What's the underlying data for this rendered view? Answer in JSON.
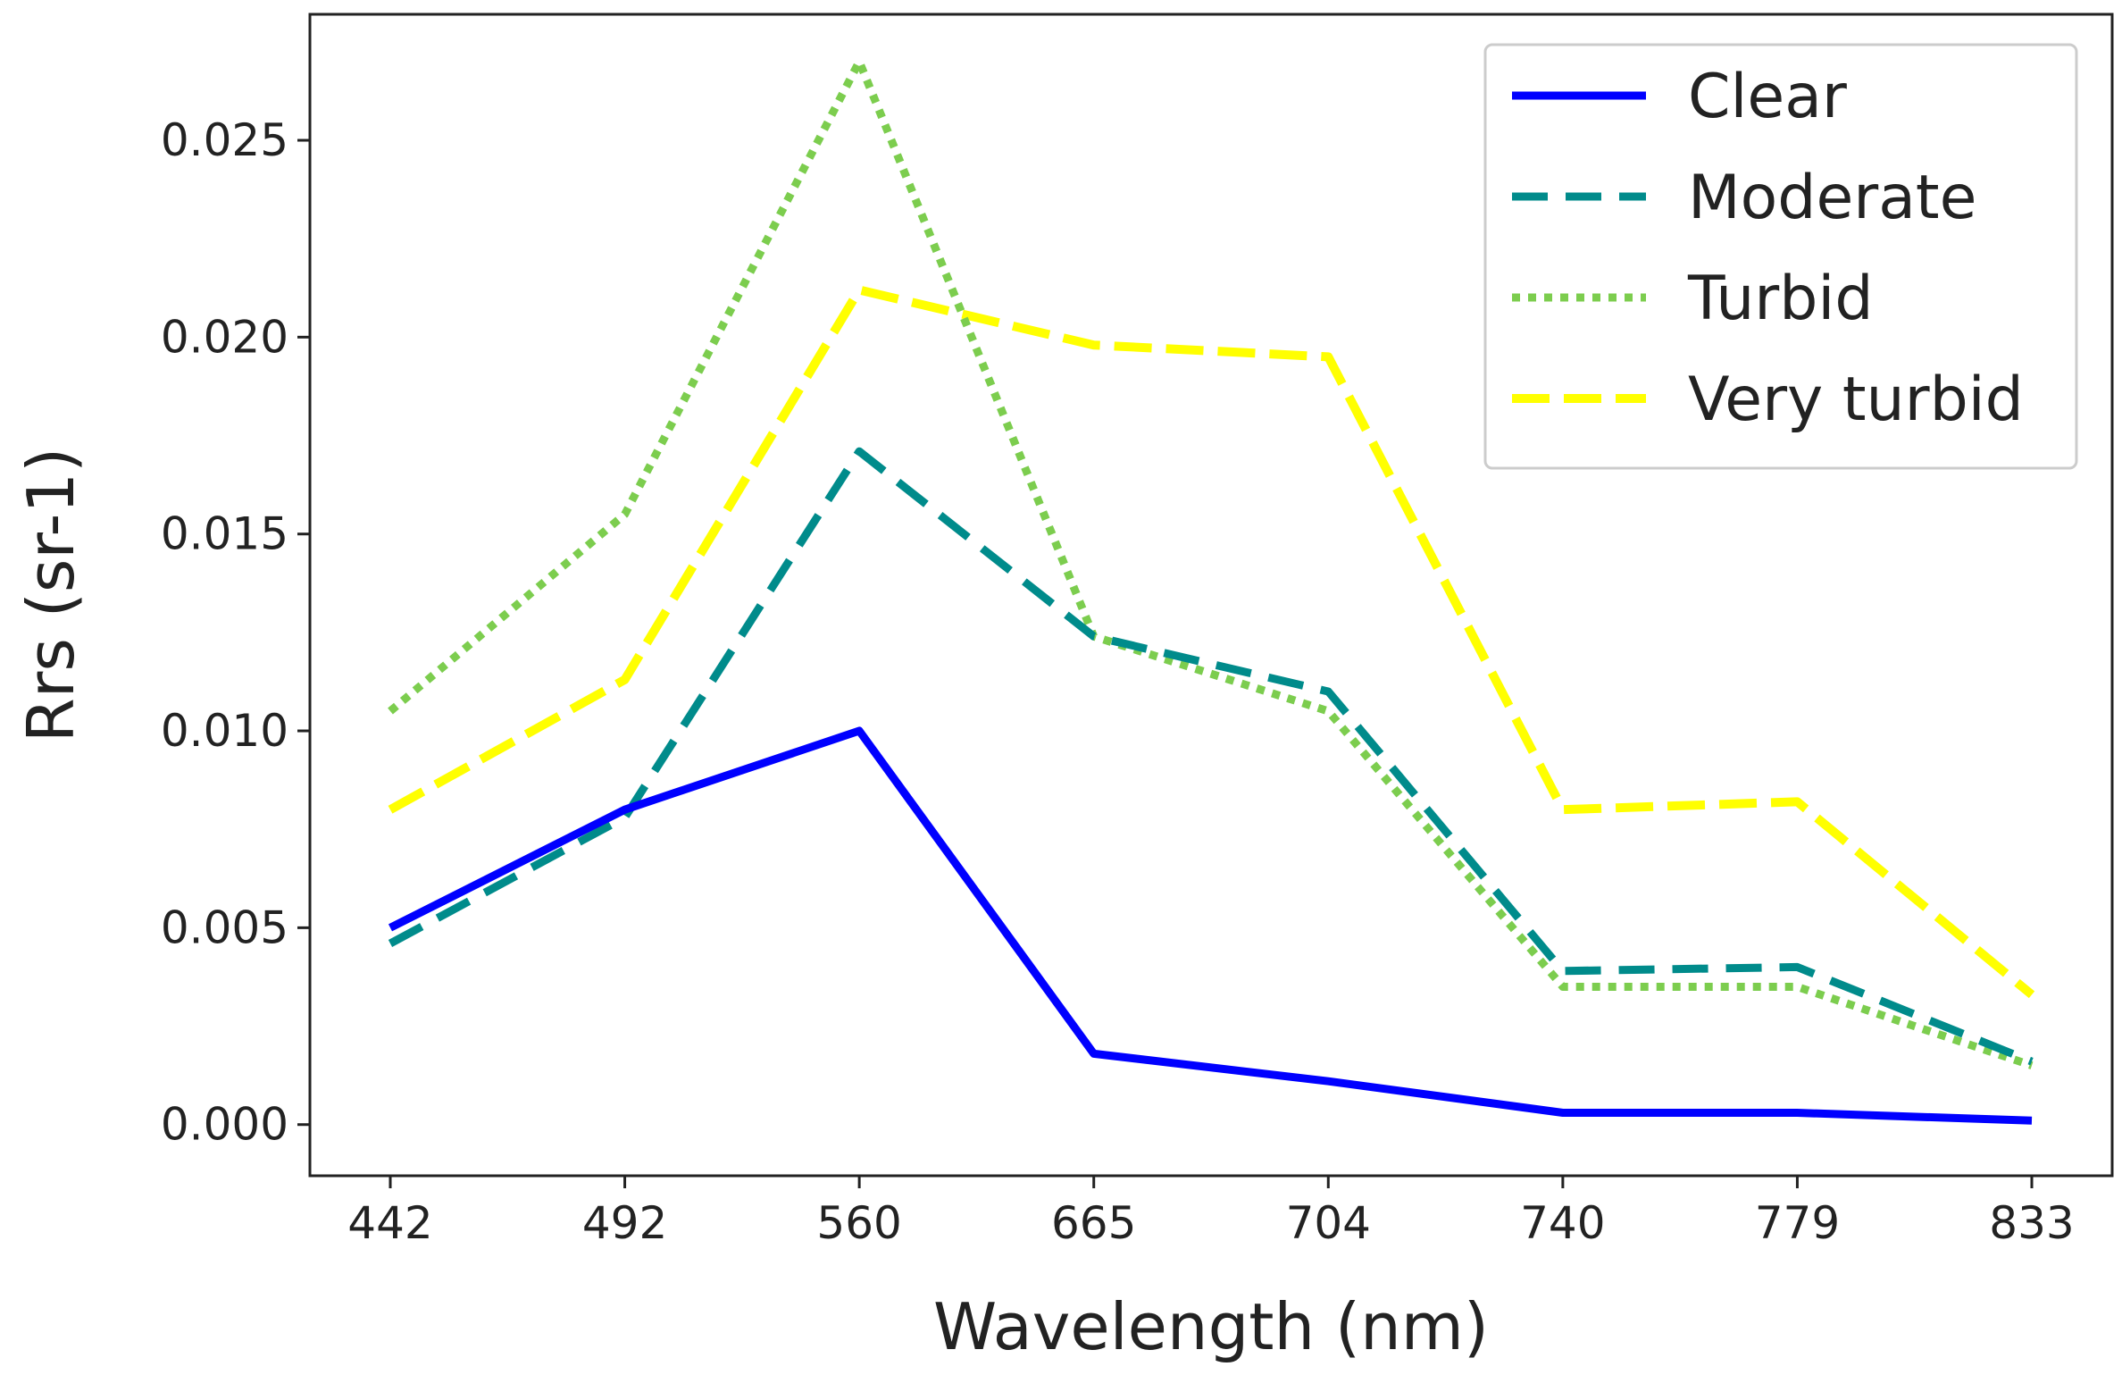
{
  "chart_data": {
    "type": "line",
    "title": "",
    "xlabel": "Wavelength (nm)",
    "ylabel": "Rrs (sr-1)",
    "categories": [
      "442",
      "492",
      "560",
      "665",
      "704",
      "740",
      "779",
      "833"
    ],
    "ylim": [
      -0.0013,
      0.0282
    ],
    "yticks": [
      0.0,
      0.005,
      0.01,
      0.015,
      0.02,
      0.025
    ],
    "ytick_labels": [
      "0.000",
      "0.005",
      "0.010",
      "0.015",
      "0.020",
      "0.025"
    ],
    "grid": false,
    "legend_position": "upper-right",
    "series": [
      {
        "name": "Clear",
        "style": "solid",
        "color": "#0000ff",
        "values": [
          0.005,
          0.008,
          0.01,
          0.0018,
          0.0011,
          0.0003,
          0.0003,
          0.0001
        ]
      },
      {
        "name": "Moderate",
        "style": "dashed",
        "color": "#008b8b",
        "values": [
          0.0046,
          0.0078,
          0.0171,
          0.0124,
          0.011,
          0.0039,
          0.004,
          0.0016
        ]
      },
      {
        "name": "Turbid",
        "style": "dotted",
        "color": "#7ccd4e",
        "values": [
          0.0105,
          0.0155,
          0.027,
          0.0124,
          0.0105,
          0.0035,
          0.0035,
          0.0015
        ]
      },
      {
        "name": "Very turbid",
        "style": "dashdot",
        "color": "#ffff00",
        "values": [
          0.008,
          0.0113,
          0.0212,
          0.0198,
          0.0195,
          0.008,
          0.0082,
          0.0033
        ]
      }
    ]
  }
}
